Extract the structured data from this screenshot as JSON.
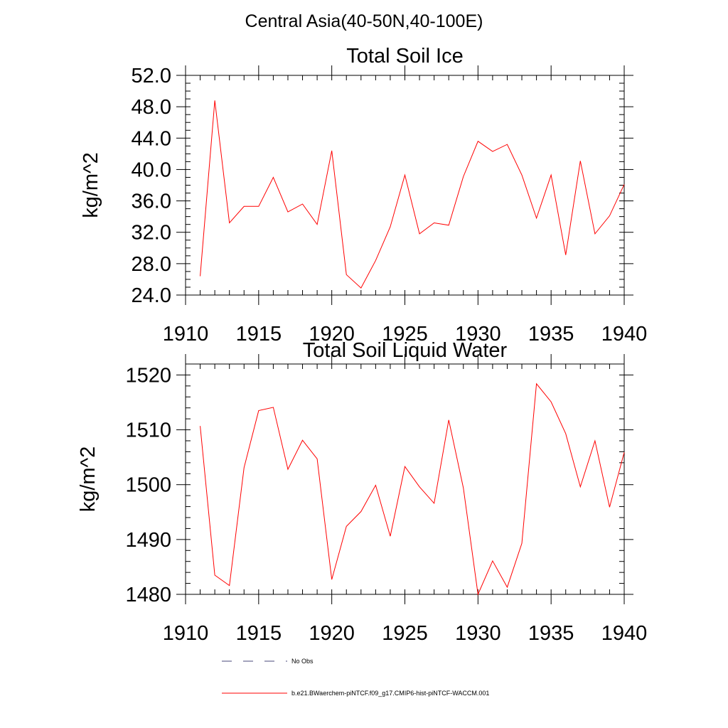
{
  "page": {
    "suptitle": "Central Asia(40-50N,40-100E)"
  },
  "chart_data": [
    {
      "type": "line",
      "title": "Total Soil Ice",
      "xlabel": "",
      "ylabel": "kg/m^2",
      "xlim": [
        1910,
        1940
      ],
      "ylim": [
        24,
        52
      ],
      "x_ticks": [
        1910,
        1915,
        1920,
        1925,
        1930,
        1935,
        1940
      ],
      "y_ticks": [
        24,
        28,
        32,
        36,
        40,
        44,
        48,
        52
      ],
      "y_tick_decimals": 1,
      "y_minor_step": 1,
      "x_minor_step": 1,
      "grid": false,
      "x": [
        1911,
        1912,
        1913,
        1914,
        1915,
        1916,
        1917,
        1918,
        1919,
        1920,
        1921,
        1922,
        1923,
        1924,
        1925,
        1926,
        1927,
        1928,
        1929,
        1930,
        1931,
        1932,
        1933,
        1934,
        1935,
        1936,
        1937,
        1938,
        1939,
        1940
      ],
      "series": [
        {
          "name": "b.e21.BWaerchem-piNTCF.f09_g17.CMIP6-hist-piNTCF-WACCM.001",
          "color": "#ff0000",
          "values": [
            26.4,
            48.8,
            33.2,
            35.3,
            35.3,
            39.0,
            34.6,
            35.6,
            33.0,
            42.4,
            26.6,
            24.9,
            28.4,
            32.7,
            39.3,
            31.8,
            33.2,
            32.9,
            39.1,
            43.6,
            42.3,
            43.2,
            39.3,
            33.8,
            39.3,
            29.1,
            41.1,
            31.8,
            34.1,
            38.1
          ]
        }
      ]
    },
    {
      "type": "line",
      "title": "Total Soil Liquid Water",
      "xlabel": "",
      "ylabel": "kg/m^2",
      "xlim": [
        1910,
        1940
      ],
      "ylim": [
        1480,
        1522
      ],
      "x_ticks": [
        1910,
        1915,
        1920,
        1925,
        1930,
        1935,
        1940
      ],
      "y_ticks": [
        1480,
        1490,
        1500,
        1510,
        1520
      ],
      "y_tick_decimals": 0,
      "y_minor_step": 2,
      "x_minor_step": 1,
      "grid": false,
      "x": [
        1911,
        1912,
        1913,
        1914,
        1915,
        1916,
        1917,
        1918,
        1919,
        1920,
        1921,
        1922,
        1923,
        1924,
        1925,
        1926,
        1927,
        1928,
        1929,
        1930,
        1931,
        1932,
        1933,
        1934,
        1935,
        1936,
        1937,
        1938,
        1939,
        1940
      ],
      "series": [
        {
          "name": "b.e21.BWaerchem-piNTCF.f09_g17.CMIP6-hist-piNTCF-WACCM.001",
          "color": "#ff0000",
          "values": [
            1510.7,
            1483.5,
            1481.6,
            1503.1,
            1513.5,
            1514.1,
            1502.8,
            1508.1,
            1504.7,
            1482.7,
            1492.4,
            1495.1,
            1499.9,
            1490.6,
            1503.3,
            1499.6,
            1496.6,
            1511.8,
            1499.4,
            1480.0,
            1486.1,
            1481.3,
            1489.3,
            1518.4,
            1515.1,
            1509.3,
            1499.6,
            1508.0,
            1495.9,
            1505.9
          ]
        }
      ]
    }
  ],
  "legend": {
    "entries": [
      {
        "label": "No Obs",
        "color": "#4a4a7a",
        "dash": true
      },
      {
        "label": "b.e21.BWaerchem-piNTCF.f09_g17.CMIP6-hist-piNTCF-WACCM.001",
        "color": "#ff0000",
        "dash": false
      }
    ]
  }
}
